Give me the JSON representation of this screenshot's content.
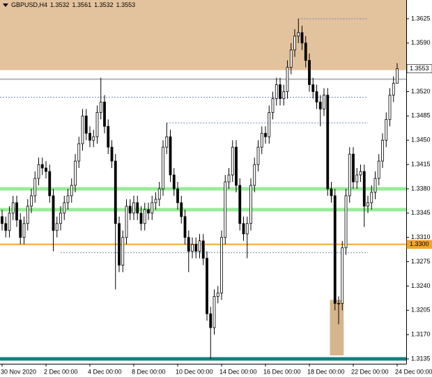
{
  "chart_data": {
    "type": "candlestick",
    "title": "GBPUSD,H4",
    "header_values": [
      1.3532,
      1.3561,
      1.3532,
      1.3553
    ],
    "up_color": "#ffffff",
    "down_color": "#000000",
    "wick_color": "#000000",
    "open": [
      1.334,
      1.333,
      1.332,
      1.3345,
      1.336,
      1.3335,
      1.331,
      1.333,
      1.3355,
      1.337,
      1.3395,
      1.3415,
      1.341,
      1.3405,
      1.337,
      1.332,
      1.333,
      1.3345,
      1.336,
      1.337,
      1.3385,
      1.342,
      1.3445,
      1.3485,
      1.346,
      1.345,
      1.3455,
      1.349,
      1.3505,
      1.347,
      1.344,
      1.342,
      1.333,
      1.327,
      1.331,
      1.3355,
      1.3345,
      1.336,
      1.3345,
      1.333,
      1.335,
      1.3345,
      1.336,
      1.3365,
      1.338,
      1.344,
      1.3455,
      1.34,
      1.338,
      1.336,
      1.334,
      1.331,
      1.329,
      1.33,
      1.329,
      1.3305,
      1.328,
      1.32,
      1.318,
      1.3225,
      1.323,
      1.331,
      1.339,
      1.34,
      1.344,
      1.3385,
      1.333,
      1.3315,
      1.333,
      1.3385,
      1.3415,
      1.344,
      1.346,
      1.3455,
      1.349,
      1.351,
      1.353,
      1.351,
      1.352,
      1.3555,
      1.358,
      1.36,
      1.3605,
      1.359,
      1.3565,
      1.353,
      1.352,
      1.3505,
      1.3495,
      1.3515,
      1.338,
      1.337,
      1.3215,
      1.3215,
      1.3295,
      1.337,
      1.343,
      1.339,
      1.34,
      1.3405,
      1.3355,
      1.336,
      1.3375,
      1.3395,
      1.342,
      1.345,
      1.348,
      1.3515,
      1.3532
    ],
    "high": [
      1.335,
      1.334,
      1.3355,
      1.337,
      1.337,
      1.3345,
      1.334,
      1.3365,
      1.338,
      1.3405,
      1.3425,
      1.3425,
      1.342,
      1.3415,
      1.338,
      1.334,
      1.3355,
      1.337,
      1.338,
      1.3395,
      1.343,
      1.3455,
      1.3495,
      1.3495,
      1.347,
      1.3465,
      1.35,
      1.354,
      1.3515,
      1.348,
      1.345,
      1.343,
      1.334,
      1.332,
      1.3365,
      1.3365,
      1.337,
      1.337,
      1.3355,
      1.336,
      1.336,
      1.337,
      1.3375,
      1.339,
      1.345,
      1.3475,
      1.3465,
      1.341,
      1.339,
      1.337,
      1.335,
      1.332,
      1.331,
      1.331,
      1.3315,
      1.3315,
      1.329,
      1.321,
      1.3235,
      1.324,
      1.332,
      1.34,
      1.341,
      1.345,
      1.345,
      1.3395,
      1.334,
      1.334,
      1.3395,
      1.3425,
      1.345,
      1.347,
      1.347,
      1.35,
      1.352,
      1.354,
      1.354,
      1.353,
      1.3565,
      1.359,
      1.361,
      1.3625,
      1.3615,
      1.36,
      1.3575,
      1.354,
      1.353,
      1.3515,
      1.3525,
      1.3525,
      1.339,
      1.338,
      1.3225,
      1.3305,
      1.338,
      1.344,
      1.344,
      1.341,
      1.3415,
      1.3415,
      1.337,
      1.3385,
      1.3405,
      1.343,
      1.346,
      1.349,
      1.3525,
      1.3542,
      1.3561
    ],
    "low": [
      1.332,
      1.331,
      1.331,
      1.3335,
      1.3325,
      1.33,
      1.33,
      1.332,
      1.3345,
      1.336,
      1.3385,
      1.34,
      1.3395,
      1.336,
      1.329,
      1.331,
      1.332,
      1.3335,
      1.335,
      1.336,
      1.3375,
      1.341,
      1.3435,
      1.345,
      1.344,
      1.344,
      1.3445,
      1.348,
      1.346,
      1.343,
      1.341,
      1.3235,
      1.326,
      1.326,
      1.33,
      1.3335,
      1.3335,
      1.3335,
      1.332,
      1.332,
      1.3335,
      1.3335,
      1.335,
      1.3355,
      1.337,
      1.343,
      1.339,
      1.337,
      1.335,
      1.333,
      1.33,
      1.326,
      1.328,
      1.328,
      1.328,
      1.327,
      1.319,
      1.3135,
      1.317,
      1.3215,
      1.322,
      1.33,
      1.338,
      1.339,
      1.3375,
      1.332,
      1.3305,
      1.328,
      1.332,
      1.3375,
      1.3405,
      1.343,
      1.3445,
      1.3445,
      1.348,
      1.35,
      1.35,
      1.35,
      1.351,
      1.3545,
      1.357,
      1.359,
      1.358,
      1.3555,
      1.352,
      1.351,
      1.3495,
      1.347,
      1.3485,
      1.337,
      1.336,
      1.3205,
      1.3185,
      1.3205,
      1.3285,
      1.336,
      1.338,
      1.338,
      1.339,
      1.3325,
      1.3345,
      1.335,
      1.3365,
      1.3385,
      1.341,
      1.344,
      1.347,
      1.3505,
      1.3532
    ],
    "close": [
      1.333,
      1.332,
      1.3345,
      1.336,
      1.3335,
      1.331,
      1.333,
      1.3355,
      1.337,
      1.3395,
      1.3415,
      1.341,
      1.3405,
      1.337,
      1.332,
      1.333,
      1.3345,
      1.336,
      1.337,
      1.3385,
      1.342,
      1.3445,
      1.3485,
      1.346,
      1.345,
      1.3455,
      1.349,
      1.3505,
      1.347,
      1.344,
      1.342,
      1.333,
      1.327,
      1.331,
      1.3355,
      1.3345,
      1.336,
      1.3345,
      1.333,
      1.335,
      1.3345,
      1.336,
      1.3365,
      1.338,
      1.344,
      1.3455,
      1.34,
      1.338,
      1.336,
      1.334,
      1.331,
      1.329,
      1.33,
      1.329,
      1.3305,
      1.328,
      1.32,
      1.318,
      1.3225,
      1.323,
      1.331,
      1.339,
      1.34,
      1.344,
      1.3385,
      1.333,
      1.3315,
      1.333,
      1.3385,
      1.3415,
      1.344,
      1.346,
      1.3455,
      1.349,
      1.351,
      1.353,
      1.351,
      1.352,
      1.3555,
      1.358,
      1.36,
      1.3605,
      1.359,
      1.3565,
      1.353,
      1.352,
      1.3505,
      1.3495,
      1.3515,
      1.338,
      1.337,
      1.3215,
      1.3215,
      1.3295,
      1.337,
      1.343,
      1.339,
      1.34,
      1.3405,
      1.3355,
      1.336,
      1.3375,
      1.3395,
      1.342,
      1.345,
      1.348,
      1.3515,
      1.3532,
      1.3553
    ],
    "xticks": [
      {
        "value": 0,
        "label": "30 Nov 2020"
      },
      {
        "value": 12,
        "label": "2 Dec 00:00"
      },
      {
        "value": 24,
        "label": "4 Dec 00:00"
      },
      {
        "value": 36,
        "label": "8 Dec 00:00"
      },
      {
        "value": 48,
        "label": "10 Dec 00:00"
      },
      {
        "value": 60,
        "label": "14 Dec 00:00"
      },
      {
        "value": 72,
        "label": "16 Dec 00:00"
      },
      {
        "value": 84,
        "label": "18 Dec 00:00"
      },
      {
        "value": 96,
        "label": "22 Dec 00:00"
      },
      {
        "value": 108,
        "label": "24 Dec 00:00"
      }
    ],
    "ylim": [
      1.3128,
      1.3652
    ],
    "yticks": [
      1.3625,
      {
        "value": 1.359,
        "label": "1.3590"
      },
      {
        "value": 1.352,
        "label": "1.3520"
      },
      1.3485,
      {
        "value": 1.345,
        "label": "1.3450"
      },
      1.3415,
      {
        "value": 1.338,
        "label": "1.3380"
      },
      1.3345,
      {
        "value": 1.331,
        "label": "1.3310"
      },
      1.3275,
      {
        "value": 1.324,
        "label": "1.3240"
      },
      1.3205,
      {
        "value": 1.317,
        "label": "1.3170"
      },
      1.3135
    ],
    "zones": [
      {
        "from": 1.3551,
        "to": 1.3652,
        "start": 0,
        "end": 108,
        "color": "#e3c39d"
      },
      {
        "from": 1.314,
        "to": 1.322,
        "start": 90,
        "end": 93,
        "color": "#d6b58c"
      }
    ],
    "levels": [
      {
        "value": 1.3538,
        "color": "#b4b4b4",
        "width": 2
      },
      {
        "value": 1.338,
        "color": "#98ec98",
        "width": 5
      },
      {
        "value": 1.335,
        "color": "#98ec98",
        "width": 5
      },
      {
        "value": 1.33,
        "color": "#f2a52e",
        "width": 2
      },
      {
        "value": 1.3135,
        "color": "#12807f",
        "width": 5
      }
    ],
    "dotted": [
      {
        "value": 1.3625,
        "start": 81,
        "end": 100,
        "color": "#6f8fb5"
      },
      {
        "value": 1.3512,
        "start": 0,
        "end": 100,
        "color": "#6f8fb5"
      },
      {
        "value": 1.3475,
        "start": 45,
        "end": 100,
        "color": "#6f8fb5"
      },
      {
        "value": 1.3288,
        "start": 16,
        "end": 100,
        "color": "#6f8fb5"
      }
    ],
    "price_labels": [
      {
        "value": 1.3553,
        "label": "1.3553",
        "bg": "#ffffff",
        "fg": "#000000"
      },
      {
        "value": 1.33,
        "label": "1.3300",
        "bg": "#f2a52e",
        "fg": "#ffffff"
      }
    ]
  }
}
